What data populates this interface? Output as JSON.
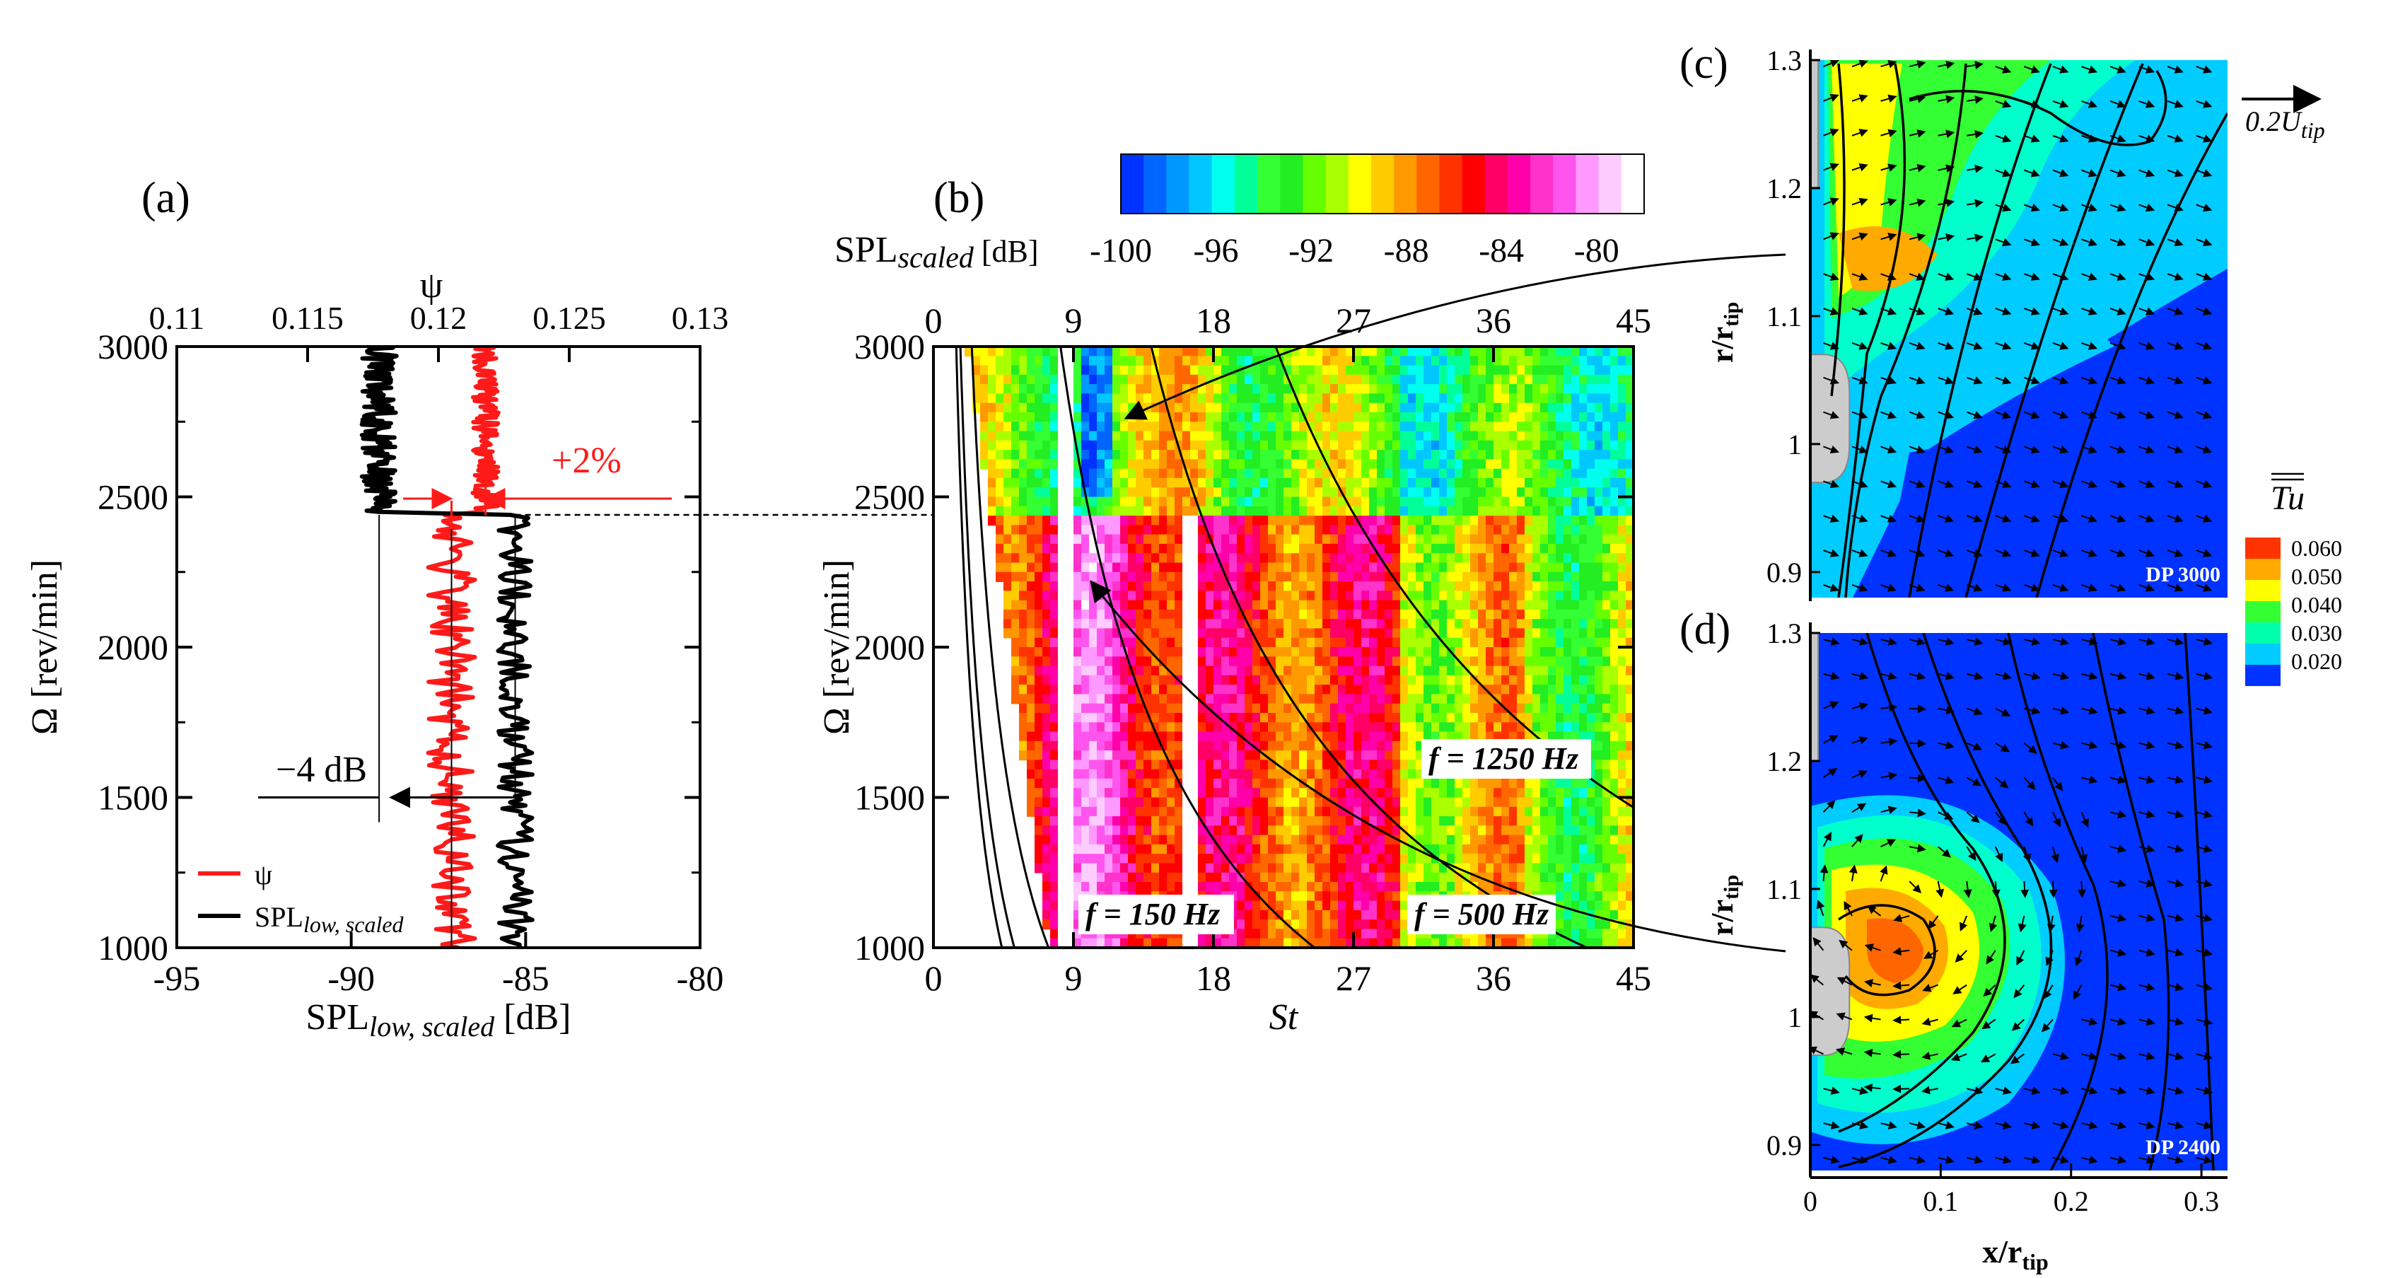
{
  "figure": {
    "panel_labels": [
      "(a)",
      "(b)",
      "(c)",
      "(d)"
    ]
  },
  "chart_data": [
    {
      "panel": "(a)",
      "type": "line",
      "xlabel_bottom": "SPLlow, scaled [dB]",
      "xlabel_bottom_base": "SPL",
      "xlabel_bottom_sub": "low, scaled",
      "xlabel_bottom_unit": " [dB]",
      "xlabel_top": "ψ",
      "ylabel": "Ω [rev/min]",
      "x_bottom_range": [
        -95,
        -80
      ],
      "x_bottom_ticks": [
        "-95",
        "-90",
        "-85",
        "-80"
      ],
      "x_top_range": [
        0.11,
        0.13
      ],
      "x_top_ticks": [
        "0.11",
        "0.115",
        "0.12",
        "0.125",
        "0.13"
      ],
      "y_range": [
        1000,
        3000
      ],
      "y_ticks": [
        "1000",
        "1500",
        "2000",
        "2500",
        "3000"
      ],
      "legend": [
        {
          "label": "ψ",
          "color": "#ff1a1a"
        },
        {
          "label_base": "SPL",
          "label_sub": "low, scaled",
          "color": "#000000"
        }
      ],
      "annotations": {
        "psi_change": "+2%",
        "spl_change": "−4 dB"
      },
      "series": [
        {
          "name": "ψ",
          "axis": "top",
          "color": "#ff1a1a",
          "segments": [
            {
              "y_from": 1000,
              "y_to": 2440,
              "mean": 0.1205,
              "spread": 0.0009
            },
            {
              "y_from": 2450,
              "y_to": 3000,
              "mean": 0.1218,
              "spread": 0.0005
            }
          ]
        },
        {
          "name": "SPLlow, scaled",
          "axis": "bottom",
          "color": "#000000",
          "segments": [
            {
              "y_from": 1000,
              "y_to": 2440,
              "mean": -85.3,
              "spread": 0.5
            },
            {
              "y_from": 2450,
              "y_to": 3000,
              "mean": -89.2,
              "spread": 0.5
            }
          ]
        }
      ]
    },
    {
      "panel": "(b)",
      "type": "heatmap",
      "xlabel": "St",
      "ylabel": "Ω  [rev/min]",
      "x_range": [
        0,
        45
      ],
      "x_ticks": [
        "0",
        "9",
        "18",
        "27",
        "36",
        "45"
      ],
      "y_range": [
        1000,
        3000
      ],
      "y_ticks": [
        "1000",
        "1500",
        "2000",
        "2500",
        "3000"
      ],
      "colorbar": {
        "label_base": "SPL",
        "label_sub": "scaled",
        "label_unit": " [dB]",
        "range": [
          -100,
          -78
        ],
        "ticks": [
          "-100",
          "-96",
          "-92",
          "-88",
          "-84",
          "-80"
        ],
        "colors": [
          "#0033ff",
          "#0066ff",
          "#0099ff",
          "#00c8ff",
          "#00ffee",
          "#00ff99",
          "#33ff33",
          "#22ee22",
          "#66ff00",
          "#aaff00",
          "#ffff00",
          "#ffcc00",
          "#ff9900",
          "#ff6600",
          "#ff3300",
          "#ff0000",
          "#ff0066",
          "#ff00aa",
          "#ff33cc",
          "#ff55ee",
          "#ff99ff",
          "#ffccff",
          "#ffffff"
        ]
      },
      "iso_frequency_lines": [
        "f = 150 Hz",
        "f = 500 Hz",
        "f = 1250 Hz"
      ],
      "dp_boundary_rpm": 2440
    },
    {
      "panel": "(c)",
      "type": "heatmap",
      "name": "DP 3000",
      "ylabel_base": "r/r",
      "ylabel_sub": "tip",
      "y_range": [
        0.88,
        1.3
      ],
      "y_ticks": [
        "0.9",
        "1",
        "1.1",
        "1.2",
        "1.3"
      ],
      "x_range": [
        0,
        0.3
      ],
      "vector_reference": "0.2U",
      "vector_reference_sub": "tip"
    },
    {
      "panel": "(d)",
      "type": "heatmap",
      "name": "DP 2400",
      "ylabel_base": "r/r",
      "ylabel_sub": "tip",
      "xlabel_base": "x/r",
      "xlabel_sub": "tip",
      "y_range": [
        0.88,
        1.3
      ],
      "y_ticks": [
        "0.9",
        "1",
        "1.1",
        "1.2",
        "1.3"
      ],
      "x_range": [
        0,
        0.32
      ],
      "x_ticks": [
        "0",
        "0.1",
        "0.2",
        "0.3"
      ],
      "colorbar": {
        "label": "Tu",
        "ticks": [
          "0.060",
          "0.050",
          "0.040",
          "0.030",
          "0.020"
        ],
        "colors": [
          "#ff3300",
          "#ffaa00",
          "#ffff00",
          "#33ff33",
          "#00ffaa",
          "#00ccff",
          "#0033ff"
        ]
      }
    }
  ]
}
